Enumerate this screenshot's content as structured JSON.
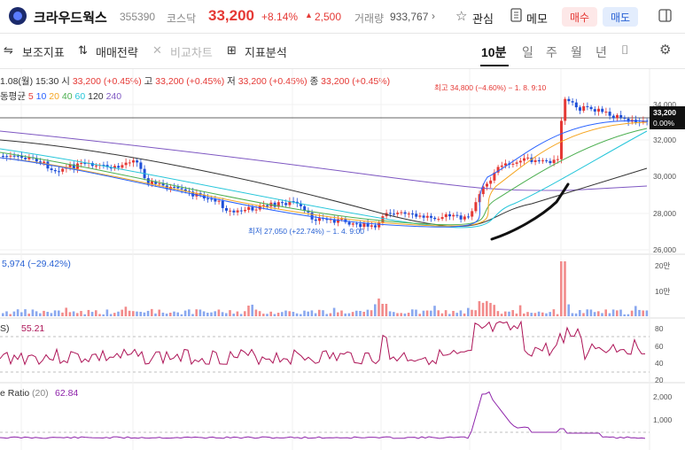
{
  "header": {
    "stock_name": "크라우드웍스",
    "code": "355390",
    "market": "코스닥",
    "price": "33,200",
    "change_pct": "+8.14%",
    "change_arrow": "▲",
    "change_amt": "2,500",
    "volume_label": "거래량",
    "volume": "933,767",
    "watch_label": "관심",
    "memo_label": "메모",
    "buy_label": "매수",
    "sell_label": "매도"
  },
  "toolbar": {
    "aux_indicator": "보조지표",
    "trade_strategy": "매매전략",
    "compare_chart": "비교차트",
    "indicator_analysis": "지표분석",
    "periods": [
      "10분",
      "일",
      "주",
      "월",
      "년"
    ]
  },
  "chart_info": {
    "date_time": "1.08(월) 15:30",
    "open_label": "시",
    "open": "33,200 (+0.45%)",
    "high_label": "고",
    "high": "33,200 (+0.45%)",
    "low_label": "저",
    "low": "33,200 (+0.45%)",
    "close_label": "종",
    "close": "33,200 (+0.45%)",
    "ma_label": "동평균",
    "ma_periods": [
      "5",
      "10",
      "20",
      "40",
      "60",
      "120",
      "240"
    ],
    "high_annotation": "최고 34,800 (−4.60%) − 1. 8. 9:10",
    "low_annotation": "최저 27,050 (+22.74%) − 1. 4. 9:00",
    "price_tag": "33,200",
    "price_tag_pct": "0.00%",
    "y_ticks": [
      "34,000",
      "32,000",
      "30,000",
      "28,000",
      "26,000"
    ]
  },
  "volume_panel": {
    "label": "5,974 (−29.42%)",
    "y_ticks": [
      "20만",
      "10만"
    ]
  },
  "rsi_panel": {
    "label_prefix": "S)",
    "value": "55.21",
    "y_ticks": [
      "80",
      "60",
      "40",
      "20"
    ]
  },
  "vr_panel": {
    "label": "e Ratio",
    "period": "(20)",
    "value": "62.84",
    "y_ticks": [
      "2,000",
      "1,000"
    ]
  },
  "colors": {
    "up": "#e53935",
    "down": "#1e4fd8",
    "ma5": "#e53935",
    "ma10": "#2962ff",
    "ma20": "#f5a623",
    "ma40": "#4caf50",
    "ma60": "#26c6da",
    "ma120": "#333333",
    "ma240": "#7e57c2"
  }
}
